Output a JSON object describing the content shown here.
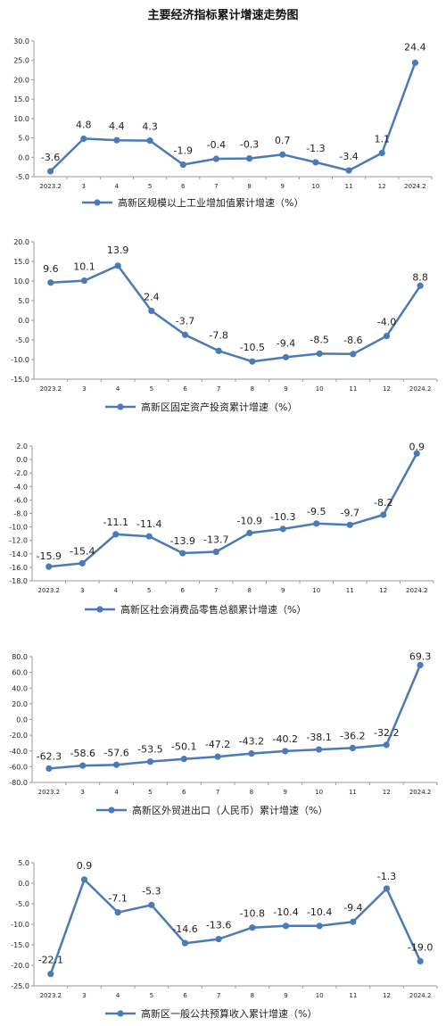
{
  "page_title": "主要经济指标累计增速走势图",
  "colors": {
    "line": "#4a7ab8",
    "axis": "#9a9a9a",
    "grid": "#d8d8d8",
    "text": "#222222"
  },
  "chart_data": [
    {
      "type": "line",
      "categories": [
        "2023.2",
        "3",
        "4",
        "5",
        "6",
        "7",
        "8",
        "9",
        "10",
        "11",
        "12",
        "2024.2"
      ],
      "series": [
        {
          "name": "高新区规模以上工业增加值累计增速（%）",
          "values": [
            -3.6,
            4.8,
            4.4,
            4.3,
            -1.9,
            -0.4,
            -0.3,
            0.7,
            -1.3,
            -3.4,
            1.1,
            24.4
          ]
        }
      ],
      "data_labels": [
        "-3.6",
        "4.8",
        "4.4",
        "4.3",
        "-1.9",
        "-0.4",
        "-0.3",
        "0.7",
        "-1.3",
        "-3.4",
        "1.1",
        "24.4"
      ],
      "ylim": [
        -5,
        30
      ],
      "yticks": [
        "-5.0",
        "0.0",
        "5.0",
        "10.0",
        "15.0",
        "20.0",
        "25.0",
        "30.0"
      ],
      "legend_position": "bottom"
    },
    {
      "type": "line",
      "categories": [
        "2023.2",
        "3",
        "4",
        "5",
        "6",
        "7",
        "8",
        "9",
        "10",
        "11",
        "12",
        "2024.2"
      ],
      "series": [
        {
          "name": "高新区固定资产投资累计增速（%）",
          "values": [
            9.6,
            10.1,
            13.9,
            2.4,
            -3.7,
            -7.8,
            -10.5,
            -9.4,
            -8.5,
            -8.6,
            -4.0,
            8.8
          ]
        }
      ],
      "data_labels": [
        "9.6",
        "10.1",
        "13.9",
        "2.4",
        "-3.7",
        "-7.8",
        "-10.5",
        "-9.4",
        "-8.5",
        "-8.6",
        "-4.0",
        "8.8"
      ],
      "ylim": [
        -15,
        20
      ],
      "yticks": [
        "-15.0",
        "-10.0",
        "-5.0",
        "0.0",
        "5.0",
        "10.0",
        "15.0",
        "20.0"
      ],
      "legend_position": "bottom"
    },
    {
      "type": "line",
      "categories": [
        "2023.2",
        "3",
        "4",
        "5",
        "6",
        "7",
        "8",
        "9",
        "10",
        "11",
        "12",
        "2024.2"
      ],
      "series": [
        {
          "name": "高新区社会消费品零售总额累计增速（%）",
          "values": [
            -15.9,
            -15.4,
            -11.1,
            -11.4,
            -13.9,
            -13.7,
            -10.9,
            -10.3,
            -9.5,
            -9.7,
            -8.2,
            0.9
          ]
        }
      ],
      "data_labels": [
        "-15.9",
        "-15.4",
        "-11.1",
        "-11.4",
        "-13.9",
        "-13.7",
        "-10.9",
        "-10.3",
        "-9.5",
        "-9.7",
        "-8.2",
        "0.9"
      ],
      "ylim": [
        -18,
        2
      ],
      "yticks": [
        "-18.0",
        "-16.0",
        "-14.0",
        "-12.0",
        "-10.0",
        "-8.0",
        "-6.0",
        "-4.0",
        "-2.0",
        "0.0",
        "2.0"
      ],
      "legend_position": "bottom"
    },
    {
      "type": "line",
      "categories": [
        "2023.2",
        "3",
        "4",
        "5",
        "6",
        "7",
        "8",
        "9",
        "10",
        "11",
        "12",
        "2024.2"
      ],
      "series": [
        {
          "name": "高新区外贸进出口（人民币）累计增速（%）",
          "values": [
            -62.3,
            -58.6,
            -57.6,
            -53.5,
            -50.1,
            -47.2,
            -43.2,
            -40.2,
            -38.1,
            -36.2,
            -32.2,
            69.3
          ]
        }
      ],
      "data_labels": [
        "-62.3",
        "-58.6",
        "-57.6",
        "-53.5",
        "-50.1",
        "-47.2",
        "-43.2",
        "-40.2",
        "-38.1",
        "-36.2",
        "-32.2",
        "69.3"
      ],
      "ylim": [
        -80,
        80
      ],
      "yticks": [
        "-80.0",
        "-60.0",
        "-40.0",
        "-20.0",
        "0.0",
        "20.0",
        "40.0",
        "60.0",
        "80.0"
      ],
      "legend_position": "bottom"
    },
    {
      "type": "line",
      "categories": [
        "2023.2",
        "3",
        "4",
        "5",
        "6",
        "7",
        "8",
        "9",
        "10",
        "11",
        "12",
        "2024.2"
      ],
      "series": [
        {
          "name": "高新区一般公共预算收入累计增速（%）",
          "values": [
            -22.1,
            0.9,
            -7.1,
            -5.3,
            -14.6,
            -13.6,
            -10.8,
            -10.4,
            -10.4,
            -9.4,
            -1.3,
            -19.0
          ]
        }
      ],
      "data_labels": [
        "-22.1",
        "0.9",
        "-7.1",
        "-5.3",
        "-14.6",
        "-13.6",
        "-10.8",
        "-10.4",
        "-10.4",
        "-9.4",
        "-1.3",
        "-19.0"
      ],
      "ylim": [
        -25,
        5
      ],
      "yticks": [
        "-25.0",
        "-20.0",
        "-15.0",
        "-10.0",
        "-5.0",
        "0.0",
        "5.0"
      ],
      "legend_position": "bottom"
    }
  ]
}
